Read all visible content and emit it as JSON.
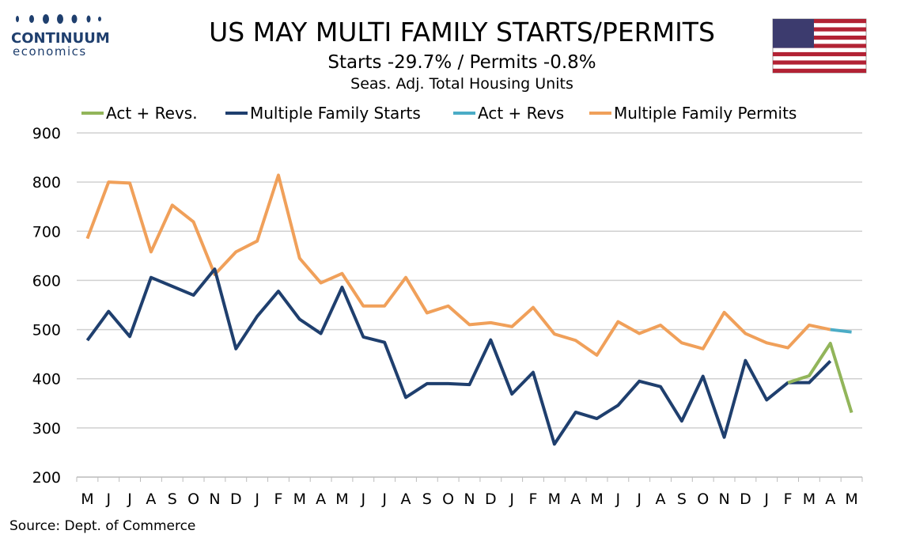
{
  "brand": {
    "name": "CONTINUUM",
    "tagline": "economics"
  },
  "chart_data": {
    "type": "line",
    "title": "US MAY MULTI FAMILY STARTS/PERMITS",
    "subtitle": "Starts  -29.7% / Permits -0.8%",
    "subtitle2": "Seas. Adj. Total Housing Units",
    "source": "Source: Dept. of Commerce",
    "categories": [
      "M",
      "J",
      "J",
      "A",
      "S",
      "O",
      "N",
      "D",
      "J",
      "F",
      "M",
      "A",
      "M",
      "J",
      "J",
      "A",
      "S",
      "O",
      "N",
      "D",
      "J",
      "F",
      "M",
      "A",
      "M",
      "J",
      "J",
      "A",
      "S",
      "O",
      "N",
      "D",
      "J",
      "F",
      "M",
      "A",
      "M"
    ],
    "ylim": [
      200,
      900
    ],
    "yticks": [
      200,
      300,
      400,
      500,
      600,
      700,
      800,
      900
    ],
    "grid": true,
    "legend": "top",
    "series": [
      {
        "name": "Act + Revs.",
        "color": "#92b55a",
        "values": [
          null,
          null,
          null,
          null,
          null,
          null,
          null,
          null,
          null,
          null,
          null,
          null,
          null,
          null,
          null,
          null,
          null,
          null,
          null,
          null,
          null,
          null,
          null,
          null,
          null,
          null,
          null,
          null,
          null,
          null,
          null,
          null,
          null,
          392,
          406,
          472,
          331
        ]
      },
      {
        "name": "Multiple Family Starts",
        "color": "#1f3f6e",
        "values": [
          478,
          537,
          486,
          606,
          588,
          570,
          623,
          461,
          527,
          578,
          521,
          492,
          586,
          485,
          474,
          362,
          390,
          390,
          388,
          479,
          369,
          413,
          267,
          332,
          319,
          346,
          395,
          384,
          314,
          405,
          281,
          437,
          357,
          392,
          392,
          436,
          null
        ]
      },
      {
        "name": "Act + Revs",
        "color": "#4bacc6",
        "values": [
          null,
          null,
          null,
          null,
          null,
          null,
          null,
          null,
          null,
          null,
          null,
          null,
          null,
          null,
          null,
          null,
          null,
          null,
          null,
          null,
          null,
          null,
          null,
          null,
          null,
          null,
          null,
          null,
          null,
          null,
          null,
          null,
          null,
          null,
          null,
          500,
          495
        ]
      },
      {
        "name": "Multiple Family Permits",
        "color": "#f0a05a",
        "values": [
          685,
          800,
          798,
          658,
          753,
          719,
          612,
          658,
          680,
          814,
          645,
          595,
          614,
          548,
          548,
          606,
          534,
          548,
          510,
          514,
          506,
          545,
          491,
          478,
          448,
          516,
          492,
          509,
          473,
          461,
          535,
          492,
          473,
          463,
          509,
          500,
          null
        ]
      }
    ]
  }
}
